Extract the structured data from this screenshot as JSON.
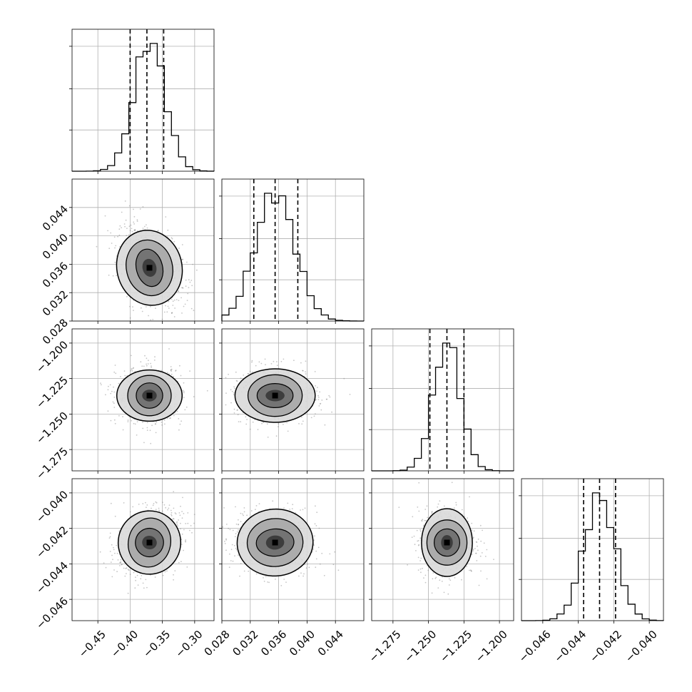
{
  "chart_data": {
    "type": "corner",
    "grid": true,
    "histogram_color": "#000000",
    "scatter_color": "#808080",
    "quantile_line_style": "dashed",
    "parameters": [
      {
        "range": [
          -0.49,
          -0.27
        ],
        "ticks": [
          -0.45,
          -0.4,
          -0.35,
          -0.3
        ],
        "tick_labels": [
          "−0.45",
          "−0.40",
          "−0.35",
          "−0.30"
        ],
        "mode": -0.37,
        "sd": 0.024,
        "quantiles": [
          -0.4,
          -0.374,
          -0.348
        ]
      },
      {
        "range": [
          0.028,
          0.048
        ],
        "ticks": [
          0.028,
          0.032,
          0.036,
          0.04,
          0.044
        ],
        "tick_labels": [
          "0.028",
          "0.032",
          "0.036",
          "0.040",
          "0.044"
        ],
        "mode": 0.0355,
        "sd": 0.0028,
        "quantiles": [
          0.0325,
          0.0355,
          0.0387
        ]
      },
      {
        "range": [
          -1.29,
          -1.19
        ],
        "ticks": [
          -1.275,
          -1.25,
          -1.225,
          -1.2
        ],
        "tick_labels": [
          "−1.275",
          "−1.250",
          "−1.225",
          "−1.200"
        ],
        "mode": -1.237,
        "sd": 0.0095,
        "quantiles": [
          -1.249,
          -1.237,
          -1.225
        ]
      },
      {
        "range": [
          -0.0472,
          -0.0392
        ],
        "ticks": [
          -0.046,
          -0.044,
          -0.042,
          -0.04
        ],
        "tick_labels": [
          "−0.046",
          "−0.044",
          "−0.042",
          "−0.040"
        ],
        "mode": -0.0428,
        "sd": 0.0009,
        "quantiles": [
          -0.0437,
          -0.0428,
          -0.0419
        ]
      }
    ],
    "pair_correlations": {
      "1-0": -0.35,
      "2-0": 0.0,
      "2-1": 0.0,
      "3-0": 0.3,
      "3-1": -0.1,
      "3-2": 0.0
    }
  }
}
